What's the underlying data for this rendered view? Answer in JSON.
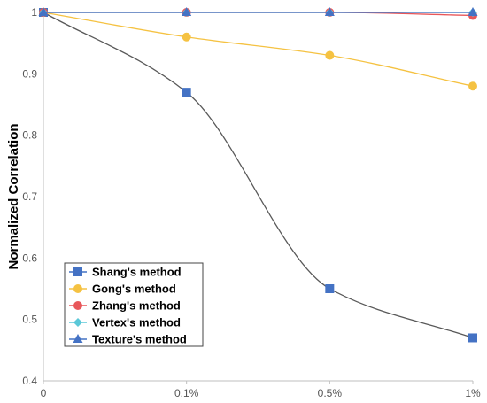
{
  "chart_data": {
    "type": "line",
    "title": "",
    "xlabel": "",
    "ylabel": "Normalized Correlation",
    "categories": [
      "0",
      "0.1%",
      "0.5%",
      "1%"
    ],
    "ylim": [
      0.4,
      1.0
    ],
    "yticks": [
      "0.4",
      "0.5",
      "0.6",
      "0.7",
      "0.8",
      "0.9",
      "1"
    ],
    "grid": false,
    "legend_position": "bottom-left",
    "series": [
      {
        "name": "Shang's method",
        "values": [
          1.0,
          0.87,
          0.55,
          0.47
        ],
        "color": "#4472C4",
        "marker": "square",
        "line_color": "#595959"
      },
      {
        "name": "Gong's method",
        "values": [
          1.0,
          0.96,
          0.93,
          0.88
        ],
        "color": "#F5C242",
        "marker": "circle",
        "line_color": "#F5C242"
      },
      {
        "name": "Zhang's method",
        "values": [
          1.0,
          1.0,
          1.0,
          0.995
        ],
        "color": "#E8575A",
        "marker": "circle",
        "line_color": "#E8575A"
      },
      {
        "name": "Vertex's method",
        "values": [
          1.0,
          1.0,
          1.0,
          1.0
        ],
        "color": "#5BC8D8",
        "marker": "diamond",
        "line_color": "#5BC8D8"
      },
      {
        "name": "Texture's method",
        "values": [
          1.0,
          1.0,
          1.0,
          1.0
        ],
        "color": "#4472C4",
        "marker": "triangle",
        "line_color": "#4472C4"
      }
    ]
  }
}
